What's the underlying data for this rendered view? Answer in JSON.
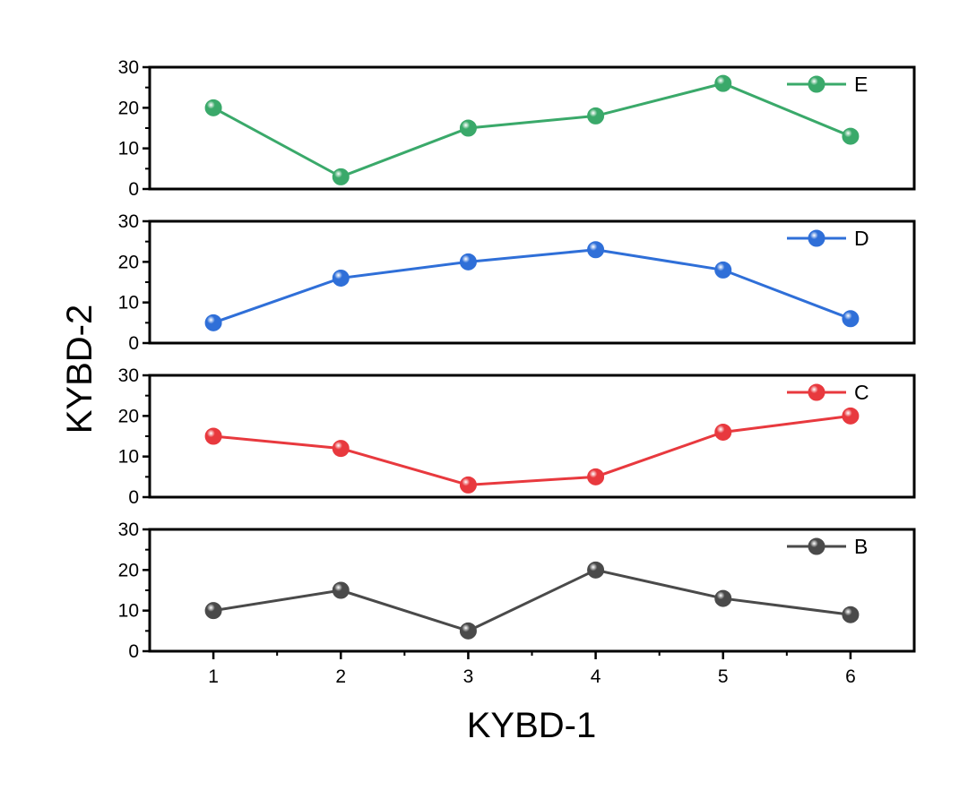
{
  "chart_data": {
    "type": "line",
    "xlabel": "KYBD-1",
    "ylabel": "KYBD-2",
    "x": [
      1,
      2,
      3,
      4,
      5,
      6
    ],
    "x_ticks": [
      "1",
      "2",
      "3",
      "4",
      "5",
      "6"
    ],
    "xlim": [
      0.5,
      6.5
    ],
    "ylim": [
      0,
      30
    ],
    "y_ticks": [
      "0",
      "10",
      "20",
      "30"
    ],
    "grid": false,
    "legend_placement": "top-right",
    "series": [
      {
        "name": "E",
        "color": "#3aa96a",
        "values": [
          20,
          3,
          15,
          18,
          26,
          13
        ]
      },
      {
        "name": "D",
        "color": "#2f6fd8",
        "values": [
          5,
          16,
          20,
          23,
          18,
          6
        ]
      },
      {
        "name": "C",
        "color": "#e8393e",
        "values": [
          15,
          12,
          3,
          5,
          16,
          20
        ]
      },
      {
        "name": "B",
        "color": "#4a4a4a",
        "values": [
          10,
          15,
          5,
          20,
          13,
          9
        ]
      }
    ]
  }
}
